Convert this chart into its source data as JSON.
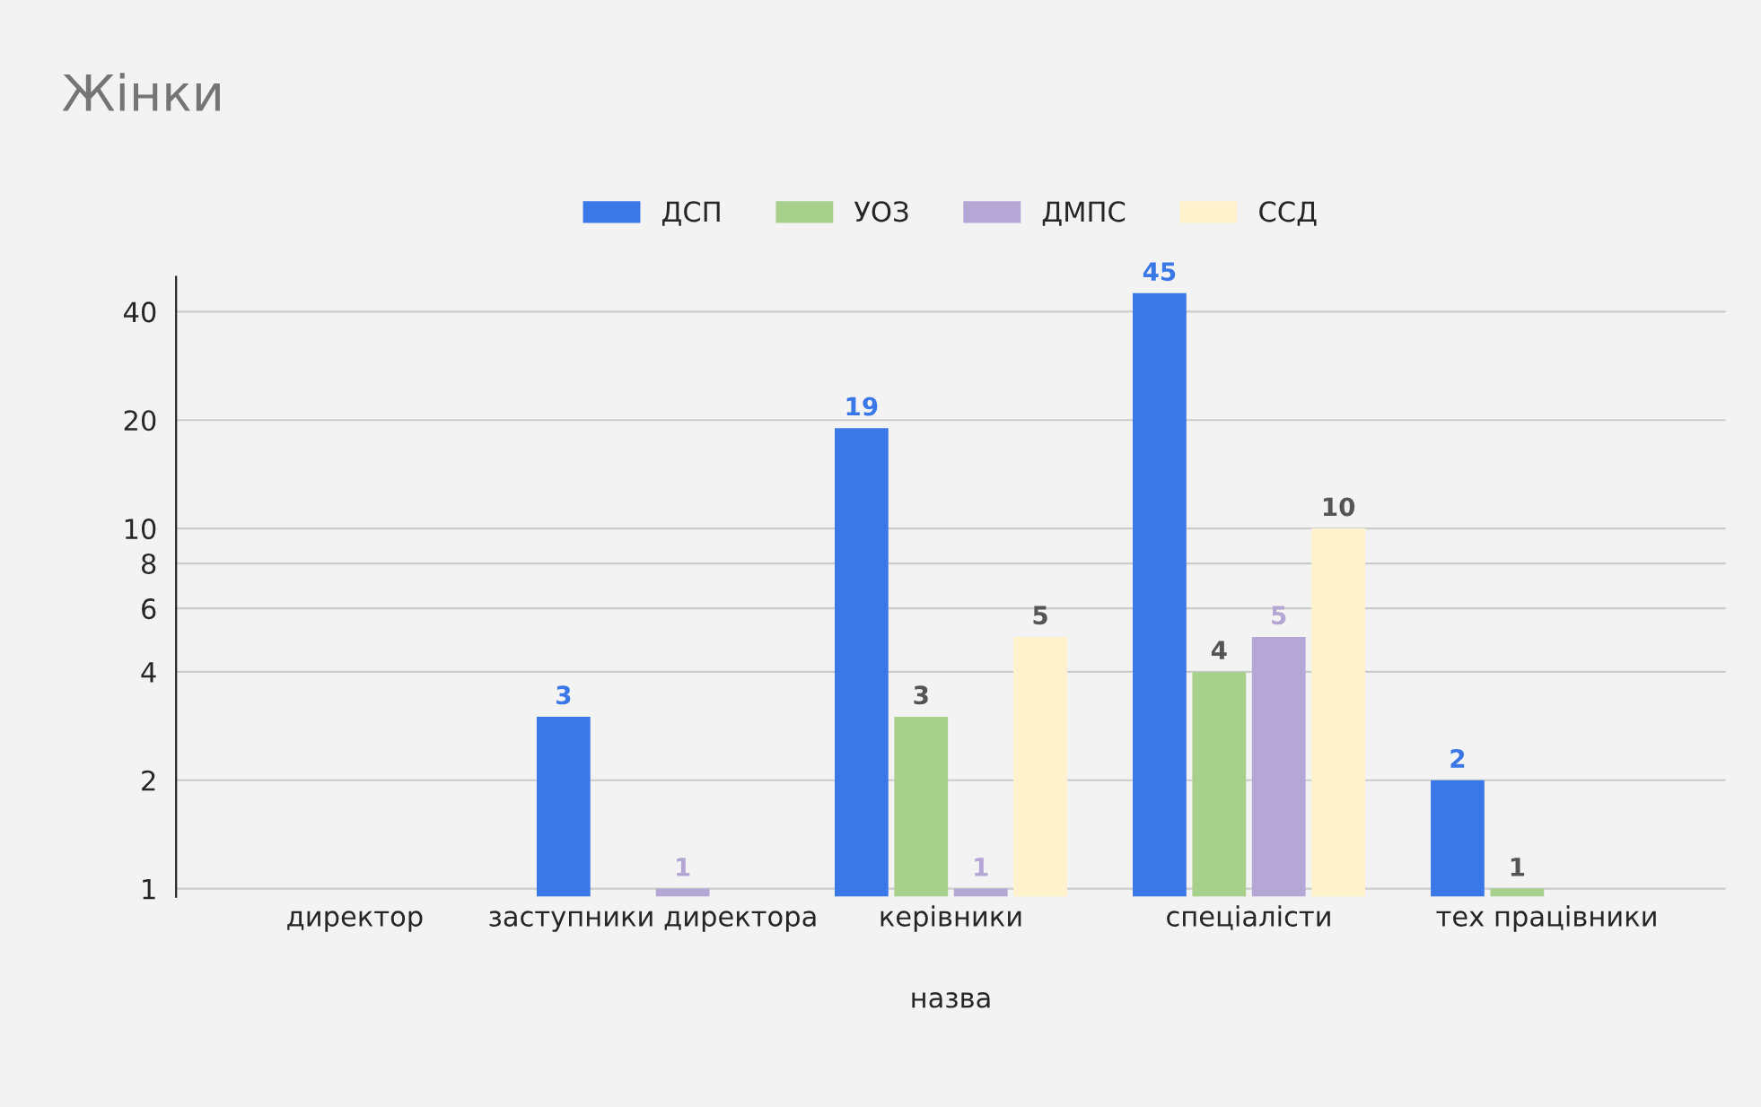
{
  "chart_data": {
    "type": "bar",
    "title": "Жінки",
    "xlabel": "назва",
    "categories": [
      "директор",
      "заступники директора",
      "керівники",
      "спеціалісти",
      "тех працівники"
    ],
    "series": [
      {
        "name": "ДСП",
        "color": "#3b78e7",
        "values": [
          null,
          3,
          19,
          45,
          2
        ],
        "value_labels": [
          null,
          "3",
          "19",
          "45",
          "2"
        ]
      },
      {
        "name": "УОЗ",
        "color": "#a8d08d",
        "values": [
          null,
          null,
          3,
          4,
          1
        ],
        "value_labels": [
          null,
          null,
          "3",
          "4",
          "1"
        ]
      },
      {
        "name": "ДМПС",
        "color": "#b4a7d6",
        "values": [
          null,
          1,
          1,
          5,
          null
        ],
        "value_labels": [
          null,
          "1",
          "1",
          "5",
          null
        ]
      },
      {
        "name": "ССД",
        "color": "#fff2cc",
        "values": [
          null,
          null,
          5,
          10,
          null
        ],
        "value_labels": [
          null,
          null,
          "5",
          "10",
          null
        ]
      }
    ],
    "log": true,
    "ylim": [
      0.95,
      50
    ],
    "yticks": [
      1,
      2,
      4,
      6,
      8,
      10,
      20,
      40
    ],
    "grid": "y",
    "legend": "top"
  }
}
